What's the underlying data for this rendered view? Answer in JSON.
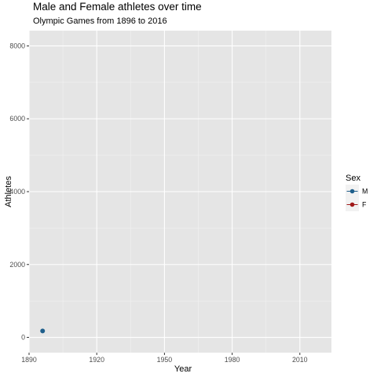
{
  "chart_data": {
    "type": "scatter",
    "title": "Male and Female athletes over time",
    "subtitle": "Olympic Games from 1896 to 2016",
    "xlabel": "Year",
    "ylabel": "Athletes",
    "xlim": [
      1890,
      2024
    ],
    "ylim": [
      -420,
      8420
    ],
    "x_ticks": [
      1890,
      1920,
      1950,
      1980,
      2010
    ],
    "y_ticks": [
      0,
      2000,
      4000,
      6000,
      8000
    ],
    "grid": true,
    "legend": {
      "title": "Sex",
      "position": "right",
      "entries": [
        {
          "label": "M",
          "color": "#1f5f8b"
        },
        {
          "label": "F",
          "color": "#a01a1a"
        }
      ]
    },
    "series": [
      {
        "name": "M",
        "color": "#1f5f8b",
        "points": [
          {
            "x": 1896,
            "y": 176
          }
        ]
      },
      {
        "name": "F",
        "color": "#a01a1a",
        "points": []
      }
    ]
  }
}
